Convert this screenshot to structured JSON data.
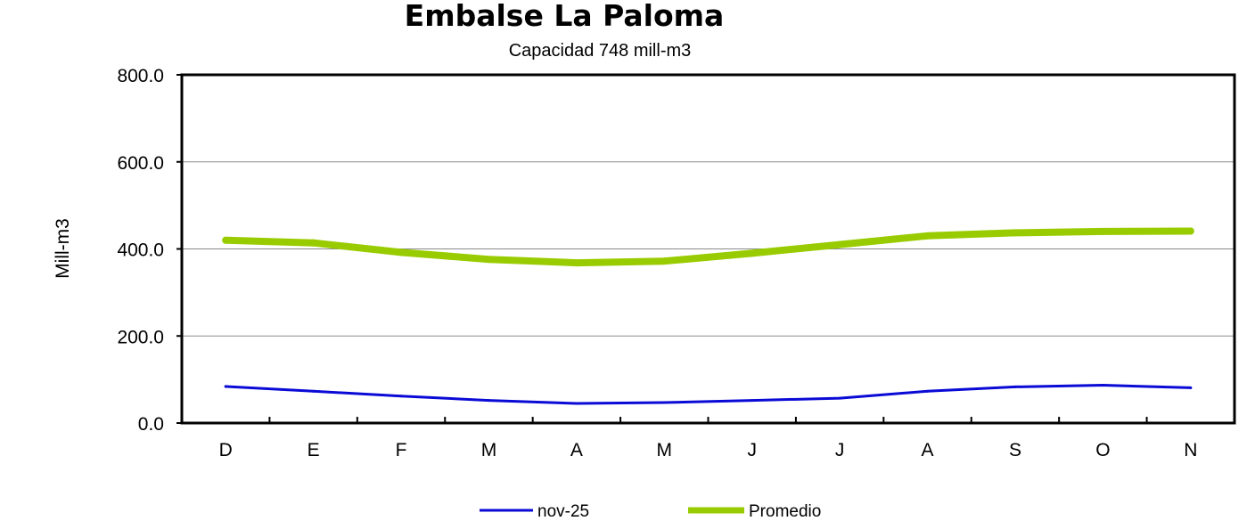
{
  "chart_data": {
    "type": "line",
    "title": "Embalse La Paloma",
    "subtitle": "Capacidad 748 mill-m3",
    "ylabel": "Mill-m3",
    "xlabel": "",
    "categories": [
      "D",
      "E",
      "F",
      "M",
      "A",
      "M",
      "J",
      "J",
      "A",
      "S",
      "O",
      "N"
    ],
    "ylim": [
      0,
      800
    ],
    "yticks": [
      "0.0",
      "200.0",
      "400.0",
      "600.0",
      "800.0"
    ],
    "grid": true,
    "legend_position": "bottom",
    "series": [
      {
        "name": "nov-25",
        "color": "#0a0ad6",
        "values": [
          84,
          73,
          62,
          52,
          45,
          47,
          52,
          57,
          73,
          83,
          87,
          81
        ]
      },
      {
        "name": "Promedio",
        "color": "#99cc00",
        "values": [
          420,
          414,
          392,
          376,
          368,
          372,
          390,
          410,
          430,
          437,
          440,
          441
        ]
      }
    ]
  }
}
